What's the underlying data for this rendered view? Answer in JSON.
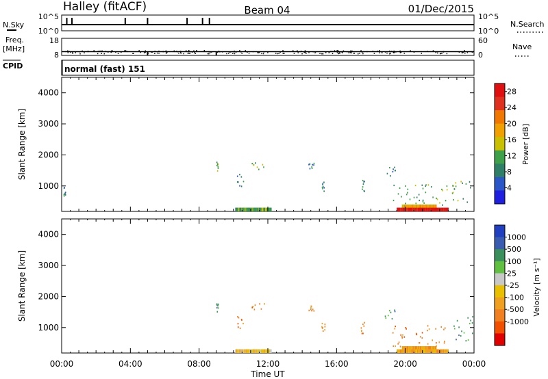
{
  "header": {
    "title": "Halley (fitACF)",
    "beam": "Beam 04",
    "date": "01/Dec/2015"
  },
  "labels": {
    "nsky": "N.Sky",
    "nsky_top": "10^5",
    "nsky_bottom": "10^0",
    "nsearch": "N.Search",
    "nsearch_top": "10^5",
    "nsearch_bottom": "10^0",
    "freq": "Freq.",
    "freq_unit": "[MHz]",
    "freq_top": "18",
    "freq_bottom": "8",
    "nave": "Nave",
    "nave_top": "60",
    "nave_bottom": "0",
    "cpid": "CPID",
    "cpid_value": "normal (fast) 151",
    "xlabel": "Time UT",
    "ylabel": "Slant Range [km]",
    "power_label": "Power [dB]",
    "velocity_label": "Velocity [m s⁻¹]"
  },
  "colors": {
    "power_scale": [
      "#1f1fe0",
      "#2a56c8",
      "#2f7e67",
      "#3fa04a",
      "#c8c000",
      "#f0a000",
      "#f07800",
      "#e03020",
      "#e01010"
    ],
    "velocity_scale": [
      "#e00000",
      "#f05000",
      "#f08020",
      "#f0a020",
      "#e8c000",
      "#c8c8c8",
      "#60c040",
      "#3a8f5a",
      "#3a5cb0",
      "#2040c0"
    ]
  },
  "chart_data": [
    {
      "type": "heatmap",
      "title": "Power",
      "xlabel": "Time UT",
      "ylabel": "Slant Range [km]",
      "x_ticks": [
        "00:00",
        "04:00",
        "08:00",
        "12:00",
        "16:00",
        "20:00",
        "00:00"
      ],
      "xlim_hours": [
        0,
        24
      ],
      "y_ticks": [
        1000,
        2000,
        3000,
        4000
      ],
      "ylim": [
        180,
        4500
      ],
      "colorbar": {
        "label": "Power [dB]",
        "ticks": [
          4,
          8,
          12,
          16,
          20,
          24,
          28
        ],
        "range": [
          0,
          30
        ]
      },
      "scatter_regions": [
        {
          "t0": 0.1,
          "t1": 0.2,
          "r0": 700,
          "r1": 1000,
          "level": 2
        },
        {
          "t0": 9.0,
          "t1": 9.1,
          "r0": 1500,
          "r1": 1800,
          "level": 3
        },
        {
          "t0": 10.2,
          "t1": 10.6,
          "r0": 1000,
          "r1": 1400,
          "level": 2
        },
        {
          "t0": 11.0,
          "t1": 11.8,
          "r0": 1550,
          "r1": 1800,
          "level": 3
        },
        {
          "t0": 14.3,
          "t1": 14.7,
          "r0": 1550,
          "r1": 1750,
          "level": 2
        },
        {
          "t0": 15.1,
          "t1": 15.3,
          "r0": 850,
          "r1": 1200,
          "level": 2
        },
        {
          "t0": 17.4,
          "t1": 17.6,
          "r0": 800,
          "r1": 1200,
          "level": 2
        },
        {
          "t0": 18.8,
          "t1": 19.4,
          "r0": 1300,
          "r1": 1650,
          "level": 2
        },
        {
          "t0": 19.2,
          "t1": 22.5,
          "r0": 400,
          "r1": 1100,
          "level": 3
        },
        {
          "t0": 22.7,
          "t1": 23.9,
          "r0": 500,
          "r1": 1400,
          "level": 3
        }
      ],
      "ground_bands": [
        {
          "t0": 10.1,
          "t1": 12.2,
          "r0": 180,
          "r1": 300,
          "level": 3
        },
        {
          "t0": 19.5,
          "t1": 22.5,
          "r0": 180,
          "r1": 300,
          "level": 8
        },
        {
          "t0": 19.8,
          "t1": 21.8,
          "r0": 300,
          "r1": 400,
          "level": 5
        }
      ]
    },
    {
      "type": "heatmap",
      "title": "Velocity",
      "xlabel": "Time UT",
      "ylabel": "Slant Range [km]",
      "x_ticks": [
        "00:00",
        "04:00",
        "08:00",
        "12:00",
        "16:00",
        "20:00",
        "00:00"
      ],
      "xlim_hours": [
        0,
        24
      ],
      "y_ticks": [
        1000,
        2000,
        3000,
        4000
      ],
      "ylim": [
        180,
        4500
      ],
      "colorbar": {
        "label": "Velocity [m s⁻¹]",
        "ticks": [
          1000,
          500,
          100,
          25,
          -25,
          -100,
          -500,
          -1000
        ],
        "range": [
          -1200,
          1200
        ]
      },
      "scatter_regions": [
        {
          "t0": 9.0,
          "t1": 9.1,
          "r0": 1500,
          "r1": 1800,
          "level": 7
        },
        {
          "t0": 10.2,
          "t1": 10.6,
          "r0": 1000,
          "r1": 1400,
          "level": 2
        },
        {
          "t0": 11.0,
          "t1": 11.8,
          "r0": 1550,
          "r1": 1800,
          "level": 2
        },
        {
          "t0": 14.3,
          "t1": 14.7,
          "r0": 1550,
          "r1": 1750,
          "level": 2
        },
        {
          "t0": 15.1,
          "t1": 15.3,
          "r0": 850,
          "r1": 1200,
          "level": 2
        },
        {
          "t0": 17.4,
          "t1": 17.6,
          "r0": 800,
          "r1": 1200,
          "level": 2
        },
        {
          "t0": 18.8,
          "t1": 19.4,
          "r0": 1300,
          "r1": 1650,
          "level": 7
        },
        {
          "t0": 19.2,
          "t1": 22.5,
          "r0": 400,
          "r1": 1100,
          "level": 2
        },
        {
          "t0": 22.7,
          "t1": 23.9,
          "r0": 500,
          "r1": 1400,
          "level": 7
        }
      ],
      "ground_bands": [
        {
          "t0": 10.1,
          "t1": 12.2,
          "r0": 180,
          "r1": 300,
          "level": 4
        },
        {
          "t0": 19.5,
          "t1": 22.5,
          "r0": 180,
          "r1": 300,
          "level": 3
        },
        {
          "t0": 19.8,
          "t1": 21.8,
          "r0": 300,
          "r1": 400,
          "level": 3
        }
      ]
    }
  ],
  "status_series": {
    "nsky_spikes_hours": [
      0.3,
      0.6,
      3.7,
      5.0,
      7.3,
      8.2,
      8.6
    ],
    "freq_mhz": 10.2,
    "freq_drops_hours": [
      5.0,
      9.0
    ]
  }
}
